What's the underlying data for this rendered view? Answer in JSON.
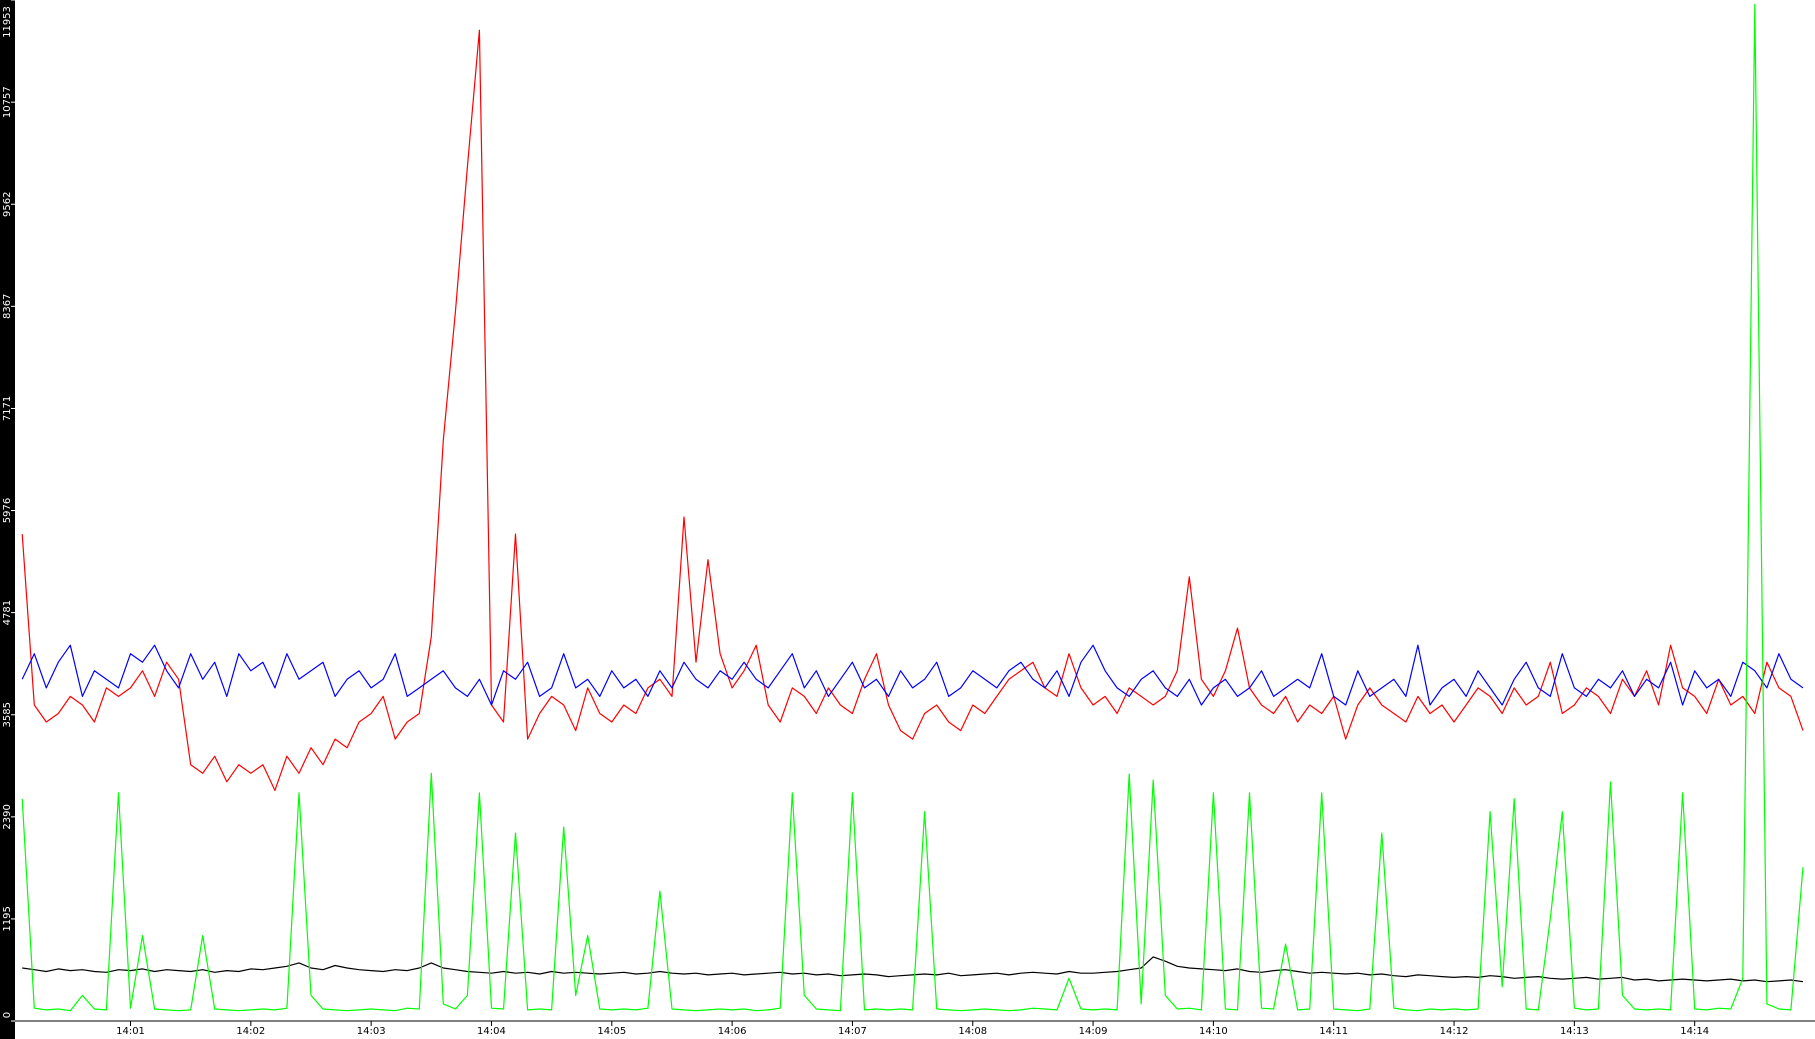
{
  "chart_data": {
    "type": "line",
    "x": [
      0.1,
      0.2,
      0.3,
      0.4,
      0.5,
      0.6,
      0.7,
      0.8,
      0.9,
      1.0,
      1.1,
      1.2,
      1.3,
      1.4,
      1.5,
      1.6,
      1.7,
      1.8,
      1.9,
      2.0,
      2.1,
      2.2,
      2.3,
      2.4,
      2.5,
      2.6,
      2.7,
      2.8,
      2.9,
      3.0,
      3.1,
      3.2,
      3.3,
      3.4,
      3.5,
      3.6,
      3.7,
      3.8,
      3.9,
      4.0,
      4.1,
      4.2,
      4.3,
      4.4,
      4.5,
      4.6,
      4.7,
      4.8,
      4.9,
      5.0,
      5.1,
      5.2,
      5.3,
      5.4,
      5.5,
      5.6,
      5.7,
      5.8,
      5.9,
      6.0,
      6.1,
      6.2,
      6.3,
      6.4,
      6.5,
      6.6,
      6.7,
      6.8,
      6.9,
      7.0,
      7.1,
      7.2,
      7.3,
      7.4,
      7.5,
      7.6,
      7.7,
      7.8,
      7.9,
      8.0,
      8.1,
      8.2,
      8.3,
      8.4,
      8.5,
      8.6,
      8.7,
      8.8,
      8.9,
      9.0,
      9.1,
      9.2,
      9.3,
      9.4,
      9.5,
      9.6,
      9.7,
      9.8,
      9.9,
      10.0,
      10.1,
      10.2,
      10.3,
      10.4,
      10.5,
      10.6,
      10.7,
      10.8,
      10.9,
      11.0,
      11.1,
      11.2,
      11.3,
      11.4,
      11.5,
      11.6,
      11.7,
      11.8,
      11.9,
      12.0,
      12.1,
      12.2,
      12.3,
      12.4,
      12.5,
      12.6,
      12.7,
      12.8,
      12.9,
      13.0,
      13.1,
      13.2,
      13.3,
      13.4,
      13.5,
      13.6,
      13.7,
      13.8,
      13.9,
      14.0,
      14.1,
      14.2,
      14.3,
      14.4,
      14.5,
      14.6,
      14.7,
      14.8,
      14.9
    ],
    "series": [
      {
        "color": "#ff0000",
        "values": [
          5700,
          3700,
          3500,
          3600,
          3800,
          3700,
          3500,
          3900,
          3800,
          3900,
          4100,
          3800,
          4200,
          4000,
          3000,
          2900,
          3100,
          2800,
          3000,
          2900,
          3000,
          2700,
          3100,
          2900,
          3200,
          3000,
          3300,
          3200,
          3500,
          3600,
          3800,
          3300,
          3500,
          3600,
          4500,
          6800,
          8300,
          10000,
          11600,
          3700,
          3500,
          5700,
          3300,
          3600,
          3800,
          3700,
          3400,
          3900,
          3600,
          3500,
          3700,
          3600,
          3900,
          4000,
          3800,
          5900,
          4200,
          5400,
          4300,
          3900,
          4100,
          4400,
          3700,
          3500,
          3900,
          3800,
          3600,
          3900,
          3700,
          3600,
          4000,
          4300,
          3700,
          3400,
          3300,
          3600,
          3700,
          3500,
          3400,
          3700,
          3600,
          3800,
          4000,
          4100,
          4200,
          3900,
          3800,
          4300,
          3900,
          3700,
          3800,
          3600,
          3900,
          3800,
          3700,
          3800,
          4100,
          5200,
          4000,
          3800,
          4100,
          4600,
          3900,
          3700,
          3600,
          3800,
          3500,
          3700,
          3600,
          3800,
          3300,
          3700,
          3900,
          3700,
          3600,
          3500,
          3800,
          3600,
          3700,
          3500,
          3700,
          3900,
          3800,
          3600,
          3900,
          3700,
          3800,
          4200,
          3600,
          3700,
          3900,
          3800,
          3600,
          4000,
          3800,
          4100,
          3700,
          4400,
          3900,
          3800,
          3600,
          4000,
          3700,
          3800,
          3600,
          4200,
          3900,
          3800,
          3400
        ]
      },
      {
        "color": "#0000ff",
        "values": [
          4000,
          4300,
          3900,
          4200,
          4400,
          3800,
          4100,
          4000,
          3900,
          4300,
          4200,
          4400,
          4100,
          3900,
          4300,
          4000,
          4200,
          3800,
          4300,
          4100,
          4200,
          3900,
          4300,
          4000,
          4100,
          4200,
          3800,
          4000,
          4100,
          3900,
          4000,
          4300,
          3800,
          3900,
          4000,
          4100,
          3900,
          3800,
          4000,
          3700,
          4100,
          4000,
          4200,
          3800,
          3900,
          4300,
          3900,
          4000,
          3800,
          4100,
          3900,
          4000,
          3800,
          4100,
          3900,
          4200,
          4000,
          3900,
          4100,
          4000,
          4200,
          4000,
          3900,
          4100,
          4300,
          3900,
          4100,
          3800,
          4000,
          4200,
          3900,
          4000,
          3800,
          4100,
          3900,
          4000,
          4200,
          3800,
          3900,
          4100,
          4000,
          3900,
          4100,
          4200,
          4000,
          3900,
          4100,
          3800,
          4200,
          4400,
          4100,
          3900,
          3800,
          4000,
          4100,
          3900,
          3800,
          4000,
          3700,
          3900,
          4000,
          3800,
          3900,
          4100,
          3800,
          3900,
          4000,
          3900,
          4300,
          3800,
          3700,
          4100,
          3800,
          3900,
          4000,
          3800,
          4400,
          3700,
          3900,
          4000,
          3800,
          4100,
          3900,
          3700,
          4000,
          4200,
          3900,
          3800,
          4300,
          3900,
          3800,
          4000,
          3900,
          4100,
          3800,
          4000,
          3900,
          4200,
          3700,
          4100,
          3900,
          4000,
          3800,
          4200,
          4100,
          3900,
          4300,
          4000,
          3900
        ]
      },
      {
        "color": "#000000",
        "values": [
          620,
          600,
          580,
          610,
          590,
          600,
          580,
          570,
          600,
          590,
          610,
          580,
          600,
          590,
          580,
          600,
          570,
          590,
          580,
          610,
          600,
          620,
          640,
          680,
          620,
          600,
          650,
          620,
          600,
          590,
          580,
          600,
          590,
          620,
          680,
          620,
          600,
          580,
          570,
          560,
          580,
          560,
          570,
          550,
          580,
          560,
          570,
          560,
          550,
          560,
          570,
          550,
          560,
          580,
          560,
          550,
          560,
          540,
          550,
          560,
          540,
          550,
          560,
          570,
          550,
          560,
          540,
          550,
          530,
          540,
          550,
          540,
          520,
          530,
          540,
          550,
          540,
          560,
          530,
          540,
          550,
          560,
          540,
          560,
          570,
          560,
          550,
          580,
          560,
          560,
          570,
          580,
          600,
          620,
          750,
          700,
          640,
          620,
          610,
          600,
          590,
          610,
          580,
          570,
          590,
          600,
          580,
          560,
          570,
          560,
          550,
          560,
          540,
          550,
          530,
          520,
          540,
          530,
          520,
          510,
          520,
          510,
          530,
          520,
          500,
          510,
          520,
          500,
          490,
          500,
          510,
          490,
          500,
          510,
          480,
          490,
          470,
          480,
          490,
          480,
          470,
          480,
          490,
          470,
          480,
          460,
          470,
          480,
          460
        ]
      },
      {
        "color": "#00ff00",
        "values": [
          2600,
          150,
          130,
          140,
          120,
          300,
          140,
          130,
          2670,
          150,
          1000,
          140,
          130,
          120,
          130,
          1000,
          140,
          130,
          120,
          130,
          140,
          130,
          150,
          2670,
          300,
          140,
          130,
          120,
          130,
          140,
          130,
          120,
          150,
          140,
          2900,
          200,
          140,
          300,
          2670,
          150,
          140,
          2200,
          130,
          140,
          130,
          2270,
          300,
          1000,
          140,
          130,
          140,
          130,
          150,
          1520,
          140,
          130,
          120,
          130,
          140,
          130,
          140,
          120,
          130,
          150,
          2670,
          300,
          140,
          130,
          120,
          2670,
          130,
          140,
          130,
          140,
          130,
          2450,
          140,
          130,
          120,
          130,
          140,
          130,
          120,
          130,
          150,
          140,
          130,
          500,
          140,
          130,
          140,
          130,
          2890,
          200,
          2820,
          300,
          140,
          150,
          130,
          2670,
          140,
          130,
          2670,
          150,
          140,
          900,
          130,
          140,
          2670,
          140,
          130,
          120,
          140,
          2200,
          150,
          130,
          120,
          140,
          130,
          140,
          130,
          140,
          2450,
          400,
          2600,
          140,
          130,
          1200,
          2450,
          150,
          130,
          140,
          2800,
          300,
          140,
          130,
          140,
          130,
          2670,
          140,
          130,
          150,
          140,
          500,
          11900,
          200,
          140,
          130,
          1800
        ]
      }
    ],
    "xlim": [
      0.04,
      15
    ],
    "ylim": [
      0,
      11953
    ],
    "yticks": [
      0,
      1195,
      2390,
      3585,
      4781,
      5976,
      7171,
      8367,
      9562,
      10757,
      11953
    ],
    "xticks": [
      {
        "value": 1,
        "label": "14:01"
      },
      {
        "value": 2,
        "label": "14:02"
      },
      {
        "value": 3,
        "label": "14:03"
      },
      {
        "value": 4,
        "label": "14:04"
      },
      {
        "value": 5,
        "label": "14:05"
      },
      {
        "value": 6,
        "label": "14:06"
      },
      {
        "value": 7,
        "label": "14:07"
      },
      {
        "value": 8,
        "label": "14:08"
      },
      {
        "value": 9,
        "label": "14:09"
      },
      {
        "value": 10,
        "label": "14:10"
      },
      {
        "value": 11,
        "label": "14:11"
      },
      {
        "value": 12,
        "label": "14:12"
      },
      {
        "value": 13,
        "label": "14:13"
      },
      {
        "value": 14,
        "label": "14:14"
      }
    ]
  }
}
